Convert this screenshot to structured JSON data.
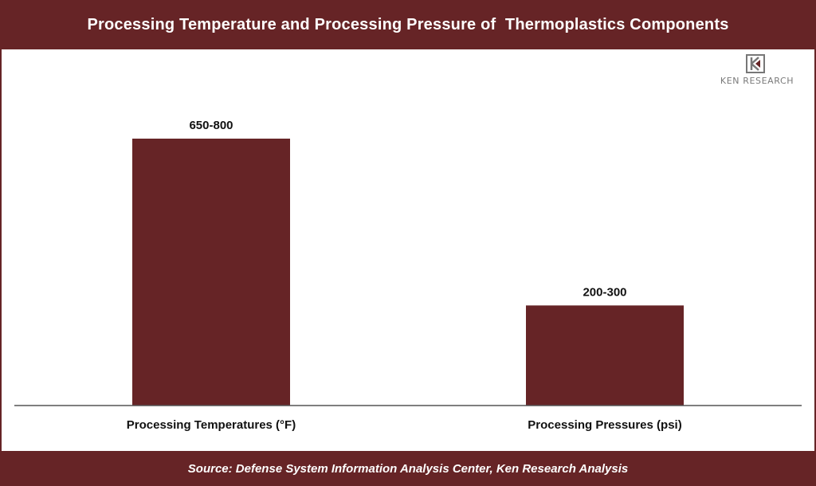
{
  "header": {
    "title": "Processing Temperature and Processing Pressure of  Thermoplastics Components"
  },
  "logo": {
    "text": "KEN RESEARCH",
    "icon": "ken-research-logo-icon"
  },
  "footer": {
    "source": "Source: Defense System Information Analysis Center, Ken Research Analysis"
  },
  "colors": {
    "brand": "#662426",
    "bar": "#662426",
    "axis": "#555555"
  },
  "chart_data": {
    "type": "bar",
    "title": "Processing Temperature and Processing Pressure of  Thermoplastics Components",
    "categories": [
      "Processing Temperatures (°F)",
      "Processing Pressures (psi)"
    ],
    "values": [
      800,
      300
    ],
    "data_labels": [
      "650-800",
      "200-300"
    ],
    "xlabel": "",
    "ylabel": "",
    "grid": false,
    "legend": "none"
  }
}
